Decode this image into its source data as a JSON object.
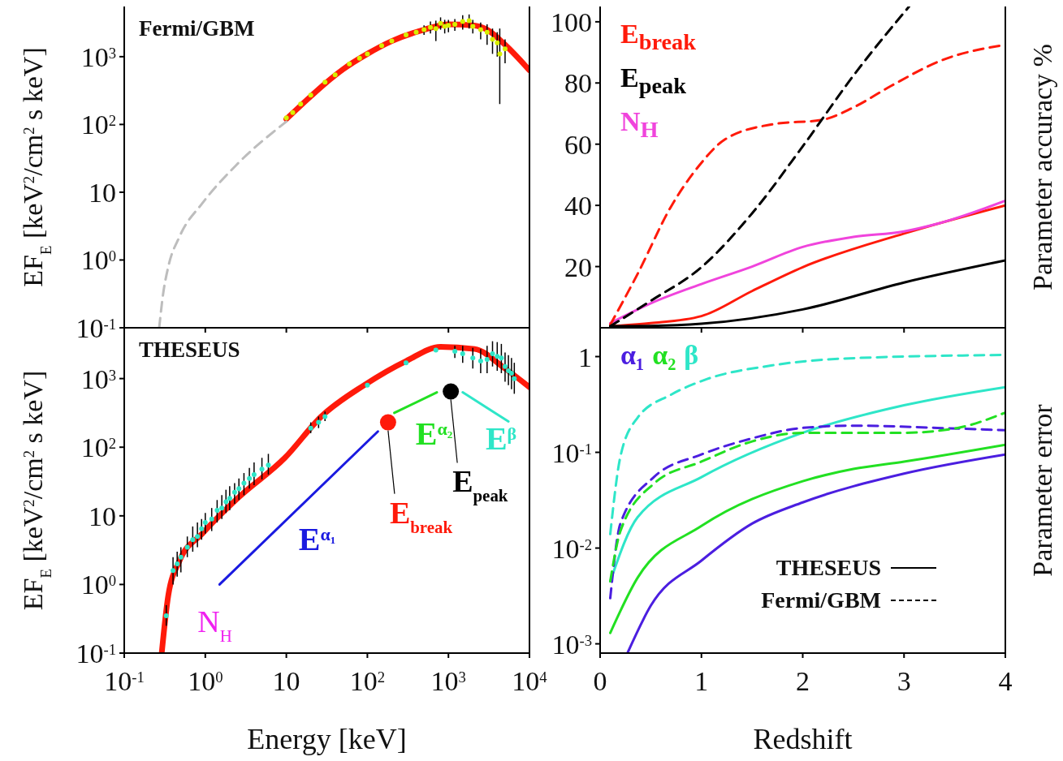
{
  "chart_data": [
    {
      "type": "line",
      "title": "Fermi/GBM",
      "ylabel": "EF$_{E}$ [keV$^{2}$/cm$^{2}$ s keV]",
      "log": "xy",
      "xlim": [
        0.1,
        10000
      ],
      "ylim": [
        0.1,
        5500
      ],
      "xticks": [
        0.1,
        1,
        10,
        100,
        1000,
        10000
      ],
      "yticks": [
        {
          "value": 0.1,
          "label": "10$^{-1}$"
        },
        {
          "value": 1,
          "label": "10$^{0}$"
        },
        10,
        {
          "value": 100,
          "label": "10$^{2}$"
        },
        {
          "value": 1000,
          "label": "10$^{3}$"
        }
      ],
      "tick_labels": "y",
      "series": [
        {
          "color": "#ff1a0a",
          "x": [
            10,
            20,
            30,
            50,
            100,
            200,
            500,
            1000,
            2000,
            3000,
            5000,
            10000
          ],
          "values": [
            120,
            260,
            400,
            650,
            1100,
            1700,
            2500,
            3000,
            2900,
            2500,
            1500,
            630
          ]
        },
        {
          "color": "#bdbdbd",
          "line_style": "dashed",
          "x": [
            0.27,
            0.3,
            0.35,
            0.48,
            0.93,
            2.4,
            10
          ],
          "values": [
            0.1,
            0.3,
            0.8,
            2.2,
            7,
            25,
            110
          ]
        },
        {
          "type": "scatter",
          "marker": "circle",
          "color": "#d8f000",
          "x": [
            10,
            12,
            15,
            20,
            30,
            40,
            60,
            80,
            100,
            150,
            200,
            300,
            400,
            500,
            600,
            700,
            800,
            900,
            1000,
            1200,
            1500,
            1800,
            2000,
            2500,
            3000,
            3500,
            4000,
            4300,
            5000
          ],
          "values": [
            125,
            150,
            200,
            270,
            420,
            540,
            780,
            950,
            1100,
            1450,
            1700,
            2100,
            2300,
            2500,
            2700,
            2600,
            3100,
            2800,
            2900,
            3000,
            3300,
            3400,
            2800,
            2500,
            2300,
            1800,
            1600,
            1100,
            1300
          ],
          "errors": [
            null,
            null,
            null,
            null,
            null,
            null,
            null,
            null,
            null,
            null,
            null,
            null,
            null,
            [
              2100,
              2900
            ],
            [
              2200,
              3300
            ],
            [
              1700,
              3400
            ],
            [
              2500,
              3800
            ],
            [
              2200,
              3500
            ],
            [
              2300,
              3500
            ],
            [
              2400,
              3600
            ],
            [
              2500,
              4100
            ],
            [
              2600,
              4200
            ],
            [
              2200,
              3500
            ],
            [
              1800,
              3200
            ],
            [
              1500,
              3000
            ],
            [
              1100,
              2600
            ],
            [
              1000,
              2300
            ],
            [
              200,
              2600
            ],
            [
              800,
              1800
            ]
          ]
        }
      ]
    },
    {
      "type": "line",
      "ylabel": "Parameter accuracy %",
      "xlim": [
        0,
        4
      ],
      "ylim": [
        0,
        105
      ],
      "xticks": [
        0,
        1,
        2,
        3,
        4
      ],
      "yticks": [
        20,
        40,
        60,
        80,
        100
      ],
      "tick_labels": "y",
      "legend": "top left",
      "series": [
        {
          "name": "E$_{break}$",
          "color": "#ff1a0a",
          "x": [
            0.1,
            0.5,
            1,
            1.5,
            2,
            3,
            4
          ],
          "values": [
            0.5,
            1.5,
            3.8,
            12,
            19.8,
            30.8,
            40
          ]
        },
        {
          "name": "E$_{peak}$",
          "color": "#000000",
          "x": [
            0.1,
            0.5,
            1,
            2,
            3,
            4
          ],
          "values": [
            0.5,
            0.6,
            1.3,
            6,
            14.8,
            22
          ]
        },
        {
          "name": "N$_{H}$",
          "color": "#f044dc",
          "x": [
            0.1,
            0.5,
            1,
            1.5,
            2,
            2.5,
            3,
            3.33,
            4
          ],
          "values": [
            1.5,
            8,
            14.3,
            20,
            26.4,
            29.7,
            31.5,
            34,
            41.5
          ]
        },
        {
          "color": "#ff1a0a",
          "line_style": "dashed",
          "x": [
            0.1,
            0.37,
            0.7,
            0.97,
            1.23,
            1.7,
            2.2,
            2.5,
            2.87,
            3.37,
            4
          ],
          "values": [
            1,
            17.6,
            39.6,
            52.7,
            61.5,
            66.5,
            68,
            72,
            79,
            87.4,
            92.5
          ]
        },
        {
          "color": "#000000",
          "line_style": "dashed",
          "x": [
            0.1,
            0.5,
            1,
            1.5,
            2,
            2.5,
            3.05
          ],
          "values": [
            0.5,
            8.8,
            19.8,
            37.4,
            59.3,
            82.4,
            105
          ]
        }
      ]
    },
    {
      "type": "line",
      "title": "THESEUS",
      "xlabel": "Energy [keV]",
      "ylabel": "EF$_{E}$ [keV$^{2}$/cm$^{2}$ s keV]",
      "log": "xy",
      "xlim": [
        0.1,
        10000
      ],
      "ylim": [
        0.1,
        5500
      ],
      "xticks": [
        {
          "value": 0.1,
          "label": "10$^{-1}$"
        },
        {
          "value": 1,
          "label": "10$^{0}$"
        },
        10,
        {
          "value": 100,
          "label": "10$^{2}$"
        },
        {
          "value": 1000,
          "label": "10$^{3}$"
        },
        {
          "value": 10000,
          "label": "10$^{4}$"
        }
      ],
      "yticks": [
        {
          "value": 0.1,
          "label": "10$^{-1}$"
        },
        {
          "value": 1,
          "label": "10$^{0}$"
        },
        10,
        {
          "value": 100,
          "label": "10$^{2}$"
        },
        {
          "value": 1000,
          "label": "10$^{3}$"
        }
      ],
      "annotations": [
        {
          "text": "N$_{H}$",
          "x": 0.35,
          "y": 0.7
        },
        {
          "text": "E$^{α₁}$",
          "x": 14.2,
          "y": 13
        },
        {
          "text": "E$_{break}$",
          "x": 180,
          "y": 230
        },
        {
          "text": "E$^{α₂}$",
          "x": 393,
          "y": 446
        },
        {
          "text": "E$_{peak}$",
          "x": 1070,
          "y": 650
        },
        {
          "text": "E$^{β}$",
          "x": 2870,
          "y": 386
        }
      ],
      "series": [
        {
          "color": "#ff1a0a",
          "x": [
            0.29,
            0.35,
            0.48,
            0.93,
            2.5,
            9.6,
            27,
            91,
            300,
            800,
            2100,
            5000,
            10000
          ],
          "values": [
            0.1,
            0.7,
            2.2,
            5.6,
            18,
            70,
            280,
            800,
            1800,
            2900,
            2700,
            1400,
            750
          ]
        },
        {
          "type": "scatter",
          "marker": "circle",
          "color": "#2ee6c8",
          "x": [
            0.33,
            0.4,
            0.45,
            0.5,
            0.6,
            0.7,
            0.8,
            0.9,
            1,
            1.2,
            1.4,
            1.6,
            1.8,
            2,
            2.3,
            2.6,
            3,
            3.5,
            4,
            5,
            6,
            20,
            25,
            30,
            100,
            300,
            700,
            1200,
            1500,
            2000,
            2500,
            3000,
            3500,
            4000,
            4500,
            5000,
            5500,
            6000,
            6500
          ],
          "values": [
            0.35,
            1.6,
            2,
            2.5,
            3.5,
            4.5,
            5,
            6.5,
            8,
            9,
            12,
            13,
            16,
            18,
            22,
            25,
            30,
            35,
            40,
            48,
            55,
            190,
            230,
            280,
            800,
            1700,
            2600,
            2500,
            2300,
            2000,
            1800,
            1900,
            2300,
            2100,
            2000,
            1500,
            1300,
            1200,
            1000
          ],
          "errors": [
            [
              0.25,
              0.5
            ],
            [
              1,
              2.5
            ],
            [
              1.3,
              3
            ],
            [
              1.5,
              3.5
            ],
            [
              2.5,
              5
            ],
            [
              3,
              7
            ],
            [
              3.5,
              8
            ],
            [
              4.5,
              9
            ],
            [
              5.5,
              11
            ],
            [
              6,
              13
            ],
            [
              8,
              17
            ],
            [
              9,
              20
            ],
            [
              11,
              24
            ],
            [
              12,
              27
            ],
            [
              15,
              30
            ],
            [
              17,
              35
            ],
            [
              20,
              42
            ],
            [
              25,
              50
            ],
            [
              28,
              60
            ],
            [
              34,
              70
            ],
            [
              40,
              80
            ],
            [
              160,
              230
            ],
            [
              190,
              280
            ],
            [
              240,
              330
            ],
            null,
            null,
            null,
            [
              2000,
              3000
            ],
            [
              1700,
              3000
            ],
            [
              1400,
              2800
            ],
            [
              1200,
              2700
            ],
            [
              1200,
              3000
            ],
            [
              1500,
              3500
            ],
            [
              1300,
              3400
            ],
            [
              1200,
              3200
            ],
            [
              900,
              2400
            ],
            [
              800,
              2200
            ],
            [
              700,
              2000
            ],
            [
              600,
              1700
            ]
          ]
        },
        {
          "color": "#1a1ae0",
          "x": [
            1.5,
            135
          ],
          "values": [
            1,
            170
          ]
        },
        {
          "type": "scatter",
          "marker": "circle",
          "color": "#ff1a0a",
          "x": [
            180
          ],
          "values": [
            230
          ]
        },
        {
          "color": "#22e022",
          "x": [
            215,
            720
          ],
          "values": [
            316,
            630
          ]
        },
        {
          "type": "scatter",
          "marker": "circle",
          "color": "#000000",
          "x": [
            1070
          ],
          "values": [
            650
          ]
        },
        {
          "color": "#2ee6c8",
          "x": [
            1500,
            5500
          ],
          "values": [
            630,
            237
          ]
        }
      ]
    },
    {
      "type": "line",
      "xlabel": "Redshift",
      "ylabel": "Parameter error",
      "log": "y",
      "xlim": [
        0,
        4
      ],
      "ylim": [
        0.0008,
        2
      ],
      "xticks": [
        0,
        1,
        2,
        3,
        4
      ],
      "yticks": [
        {
          "value": 0.001,
          "label": "10$^{-3}$"
        },
        {
          "value": 0.01,
          "label": "10$^{-2}$"
        },
        {
          "value": 0.1,
          "label": "10$^{-1}$"
        },
        1
      ],
      "legend": "top left",
      "annotations": [
        "THESEUS",
        "Fermi/GBM"
      ],
      "series": [
        {
          "name": "α₁",
          "color": "#4b1ee0",
          "x": [
            0.27,
            0.5,
            1,
            1.5,
            2,
            3,
            4
          ],
          "values": [
            0.0008,
            0.0025,
            0.0074,
            0.018,
            0.03,
            0.06,
            0.095
          ]
        },
        {
          "name": "α₂",
          "color": "#22e022",
          "x": [
            0.1,
            0.37,
            1,
            2,
            2.5,
            3,
            4
          ],
          "values": [
            0.0013,
            0.0049,
            0.017,
            0.05,
            0.067,
            0.08,
            0.12
          ]
        },
        {
          "name": "β",
          "color": "#2ee6c8",
          "x": [
            0.1,
            0.37,
            1,
            2,
            3,
            4
          ],
          "values": [
            0.0045,
            0.021,
            0.055,
            0.16,
            0.31,
            0.48
          ]
        },
        {
          "color": "#2ee6c8",
          "line_style": "dashed",
          "x": [
            0.1,
            0.2,
            0.37,
            0.7,
            1.03,
            1.7,
            2.37,
            4
          ],
          "values": [
            0.014,
            0.09,
            0.23,
            0.4,
            0.57,
            0.81,
            0.95,
            1.04
          ]
        },
        {
          "color": "#4b1ee0",
          "line_style": "dashed",
          "x": [
            0.1,
            0.2,
            0.53,
            1,
            1.5,
            2,
            2.5,
            3.33,
            4
          ],
          "values": [
            0.003,
            0.018,
            0.055,
            0.095,
            0.14,
            0.18,
            0.19,
            0.18,
            0.17
          ]
        },
        {
          "color": "#22e022",
          "line_style": "dashed",
          "x": [
            0.1,
            0.2,
            0.53,
            1,
            1.5,
            2,
            3,
            3.53,
            4
          ],
          "values": [
            0.0045,
            0.015,
            0.047,
            0.08,
            0.13,
            0.16,
            0.16,
            0.18,
            0.26
          ]
        }
      ]
    }
  ]
}
